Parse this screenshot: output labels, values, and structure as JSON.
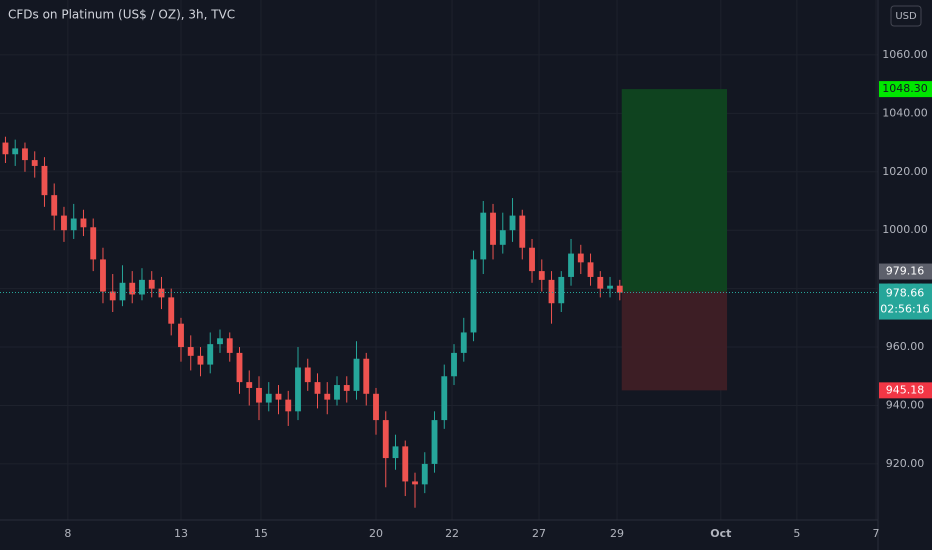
{
  "chart_data": {
    "type": "candlestick",
    "title": "CFDs on Platinum (US$ / OZ), 3h, TVC",
    "currency": "USD",
    "x": [
      -1.6,
      -1.35,
      -1.1,
      -0.85,
      -0.6,
      -0.35,
      -0.1,
      0.15,
      0.4,
      0.65,
      0.9,
      1.15,
      1.4,
      1.65,
      1.9,
      2.15,
      2.4,
      2.65,
      2.9,
      3.15,
      3.4,
      3.65,
      3.9,
      4.15,
      4.4,
      4.65,
      4.9,
      5.15,
      5.4,
      5.65,
      5.9,
      6.15,
      6.4,
      6.65,
      6.9,
      7.15,
      7.4,
      7.65,
      7.9,
      8.15,
      8.4,
      8.65,
      8.9,
      9.15,
      9.4,
      9.65,
      9.9,
      10.15,
      10.4,
      10.65,
      10.9,
      11.15,
      11.4,
      11.65,
      11.9,
      12.15,
      12.4,
      12.65,
      12.9,
      13.15,
      13.4,
      13.65,
      13.9,
      14.15
    ],
    "open": [
      1030,
      1026,
      1028,
      1024,
      1022,
      1012,
      1005,
      1000,
      1004,
      1001,
      990,
      979,
      976,
      982,
      978,
      983,
      980,
      977,
      968,
      960,
      957,
      954,
      961,
      963,
      958,
      948,
      946,
      941,
      944,
      942,
      938,
      953,
      948,
      944,
      942,
      947,
      945,
      956,
      944,
      935,
      922,
      926,
      914,
      913,
      920,
      935,
      950,
      958,
      965,
      990,
      1006,
      995,
      1000,
      1005,
      994,
      986,
      983,
      975,
      984,
      992,
      989,
      984,
      980,
      981
    ],
    "high": [
      1032,
      1031,
      1030,
      1027,
      1025,
      1016,
      1008,
      1009,
      1007,
      1004,
      994,
      985,
      988,
      986,
      987,
      986,
      984,
      980,
      970,
      964,
      960,
      965,
      966,
      965,
      960,
      952,
      950,
      948,
      947,
      945,
      960,
      956,
      951,
      948,
      950,
      950,
      962,
      958,
      946,
      938,
      930,
      928,
      917,
      924,
      938,
      954,
      961,
      970,
      993,
      1010,
      1009,
      1006,
      1011,
      1007,
      997,
      990,
      986,
      986,
      997,
      995,
      992,
      986,
      984,
      983
    ],
    "low": [
      1023,
      1022,
      1020,
      1018,
      1008,
      1000,
      996,
      997,
      998,
      986,
      975,
      972,
      974,
      975,
      976,
      977,
      973,
      964,
      955,
      952,
      950,
      951,
      958,
      955,
      944,
      940,
      935,
      938,
      937,
      933,
      935,
      945,
      939,
      937,
      940,
      941,
      942,
      940,
      930,
      912,
      918,
      909,
      905,
      910,
      917,
      932,
      947,
      955,
      962,
      985,
      990,
      992,
      996,
      990,
      982,
      979,
      968,
      972,
      981,
      985,
      981,
      977,
      977,
      976
    ],
    "close": [
      1026,
      1028,
      1024,
      1022,
      1012,
      1005,
      1000,
      1004,
      1001,
      990,
      979,
      976,
      982,
      978,
      983,
      980,
      977,
      968,
      960,
      957,
      954,
      961,
      963,
      958,
      948,
      946,
      941,
      944,
      942,
      938,
      953,
      948,
      944,
      942,
      947,
      945,
      956,
      944,
      935,
      922,
      926,
      914,
      913,
      920,
      935,
      950,
      958,
      965,
      990,
      1006,
      995,
      1000,
      1005,
      994,
      986,
      983,
      975,
      984,
      992,
      989,
      984,
      980,
      981,
      978.66
    ],
    "up_color": "#26a69a",
    "down_color": "#ef5350",
    "xlim": [
      -1.74,
      20.77
    ],
    "xticks": [
      {
        "value": 0,
        "label": "8"
      },
      {
        "value": 2.9,
        "label": "13"
      },
      {
        "value": 4.95,
        "label": "15"
      },
      {
        "value": 7.9,
        "label": "20"
      },
      {
        "value": 9.85,
        "label": "22"
      },
      {
        "value": 12.08,
        "label": "27"
      },
      {
        "value": 14.08,
        "label": "29"
      },
      {
        "value": 16.74,
        "label": "Oct"
      },
      {
        "value": 18.69,
        "label": "5"
      },
      {
        "value": 20.72,
        "label": "7"
      }
    ],
    "ylim": [
      900.8,
      1078.8
    ],
    "yticks": [
      {
        "value": 920,
        "label": "920.00"
      },
      {
        "value": 940,
        "label": "940.00"
      },
      {
        "value": 960,
        "label": "960.00"
      },
      {
        "value": 980,
        "label": "980.00"
      },
      {
        "value": 1000,
        "label": "1000.00"
      },
      {
        "value": 1020,
        "label": "1020.00"
      },
      {
        "value": 1040,
        "label": "1040.00"
      },
      {
        "value": 1060,
        "label": "1060.00"
      }
    ],
    "grid": true,
    "prev_close": 979.16,
    "countdown": "02:56:16",
    "position": {
      "x": [
        14.2,
        16.9
      ],
      "entry": 979,
      "target": {
        "value": 1048.3,
        "label": "1048.30"
      },
      "stop": {
        "value": 945.18,
        "label": "945.18"
      },
      "profit_color": "#0f4620",
      "loss_color": "#3f1f26"
    }
  }
}
